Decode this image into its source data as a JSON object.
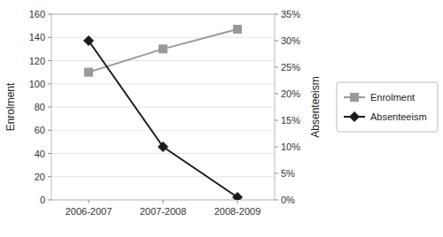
{
  "chart_data": {
    "type": "line",
    "categories": [
      "2006-2007",
      "2007-2008",
      "2008-2009"
    ],
    "series": [
      {
        "name": "Enrolment",
        "color": "#999999",
        "marker": "square",
        "values": [
          110,
          130,
          147
        ]
      },
      {
        "name": "Absenteeism",
        "color": "#1a1a1a",
        "marker": "diamond",
        "axis": "y2",
        "values": [
          30,
          10,
          0.5
        ]
      }
    ],
    "ylabel": "Enrolment",
    "y2label": "Absenteeism",
    "ylim": [
      0,
      160
    ],
    "yticks": [
      0,
      20,
      40,
      60,
      80,
      100,
      120,
      140,
      160
    ],
    "y2lim": [
      0,
      35
    ],
    "y2ticks": [
      {
        "value": 0,
        "label": "0%"
      },
      {
        "value": 5,
        "label": "5%"
      },
      {
        "value": 10,
        "label": "10%"
      },
      {
        "value": 15,
        "label": "15%"
      },
      {
        "value": 20,
        "label": "20%"
      },
      {
        "value": 25,
        "label": "25%"
      },
      {
        "value": 30,
        "label": "30%"
      },
      {
        "value": 35,
        "label": "35%"
      }
    ],
    "grid": true,
    "legend": "right"
  }
}
